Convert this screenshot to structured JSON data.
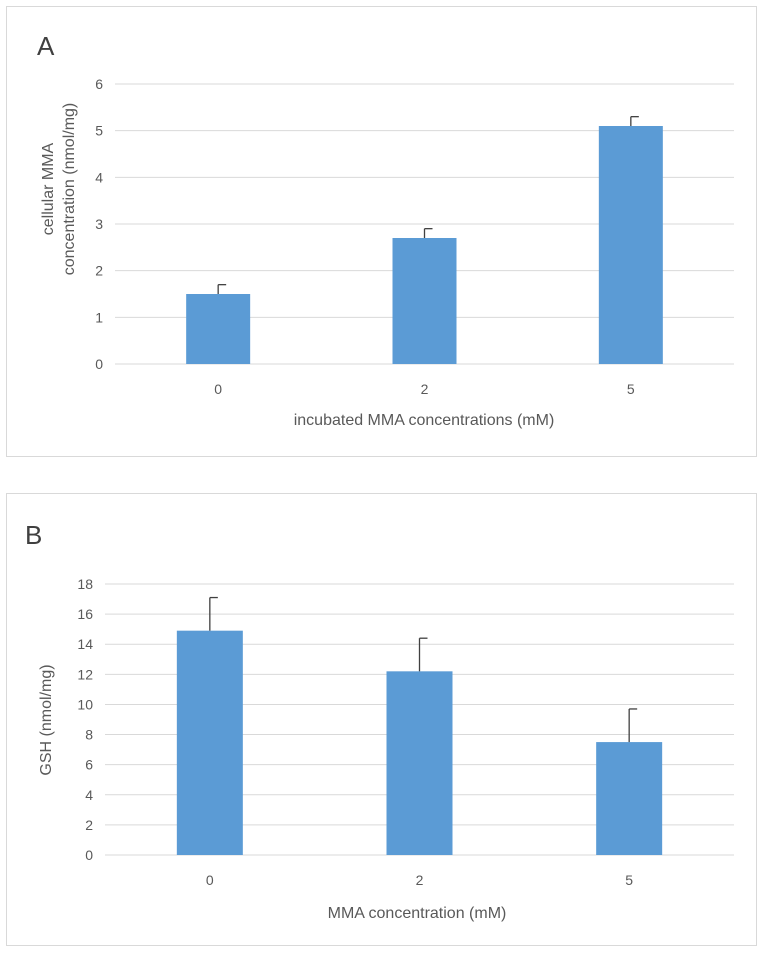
{
  "chart_data": [
    {
      "type": "bar",
      "panel_label": "A",
      "categories": [
        "0",
        "2",
        "5"
      ],
      "values": [
        1.5,
        2.7,
        5.1
      ],
      "errors": [
        0.2,
        0.2,
        0.2
      ],
      "xlabel": "incubated MMA concentrations (mM)",
      "ylabel_lines": [
        "cellular MMA",
        "concentration (nmol/mg)"
      ],
      "ylim": [
        0,
        6
      ],
      "yticks": [
        0,
        1,
        2,
        3,
        4,
        5,
        6
      ],
      "grid": true,
      "bar_color": "#5b9bd5"
    },
    {
      "type": "bar",
      "panel_label": "B",
      "categories": [
        "0",
        "2",
        "5"
      ],
      "values": [
        14.9,
        12.2,
        7.5
      ],
      "errors": [
        2.2,
        2.2,
        2.2
      ],
      "xlabel": "MMA concentration (mM)",
      "ylabel_lines": [
        "GSH (nmol/mg)"
      ],
      "ylim": [
        0,
        18
      ],
      "yticks": [
        0,
        2,
        4,
        6,
        8,
        10,
        12,
        14,
        16,
        18
      ],
      "grid": true,
      "bar_color": "#5b9bd5"
    }
  ]
}
